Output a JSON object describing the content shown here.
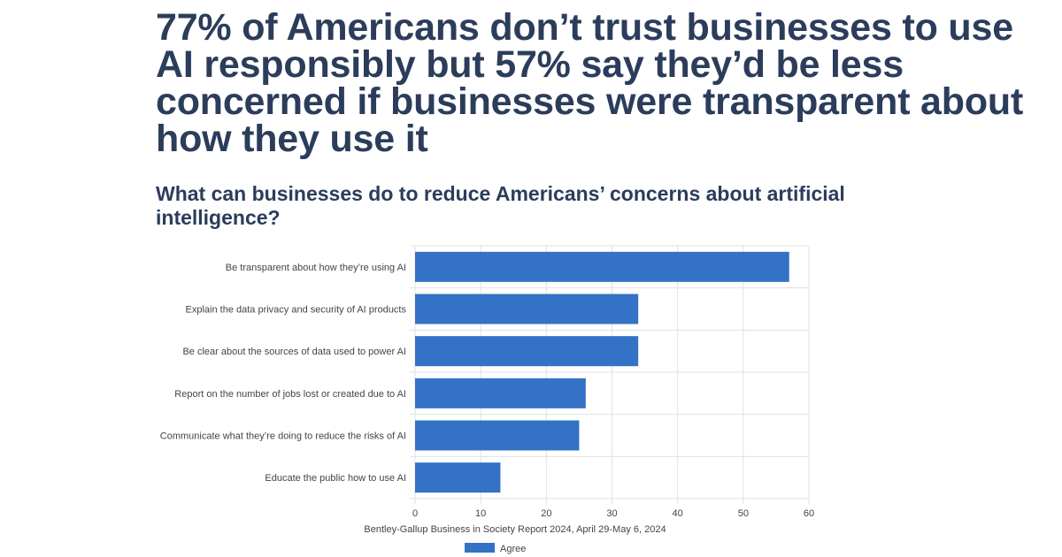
{
  "headline": "77% of Americans don’t trust businesses to use AI responsibly but 57% say they’d be less concerned if businesses were transparent about how they use it",
  "subheadline": "What can businesses do to reduce Americans’ concerns about artificial intelligence?",
  "colors": {
    "bar": "#3472c6",
    "grid": "#e1e1e1",
    "text": "#444444",
    "title": "#2b3d5b"
  },
  "chart_data": {
    "type": "bar",
    "orientation": "horizontal",
    "categories": [
      "Be transparent about how they’re using AI",
      "Explain the data privacy and security of AI products",
      "Be clear about the sources of data used to power AI",
      "Report on the number of jobs lost or created due to AI",
      "Communicate what they’re doing to reduce the risks of AI",
      "Educate the public how to use AI"
    ],
    "series": [
      {
        "name": "Agree",
        "values": [
          57,
          34,
          34,
          26,
          25,
          13
        ]
      }
    ],
    "xlim": [
      0,
      60
    ],
    "xticks": [
      0,
      10,
      20,
      30,
      40,
      50,
      60
    ],
    "xlabel": "Bentley-Gallup Business in Society Report 2024, April 29-May 6, 2024",
    "grid": true,
    "legend_position": "bottom"
  }
}
